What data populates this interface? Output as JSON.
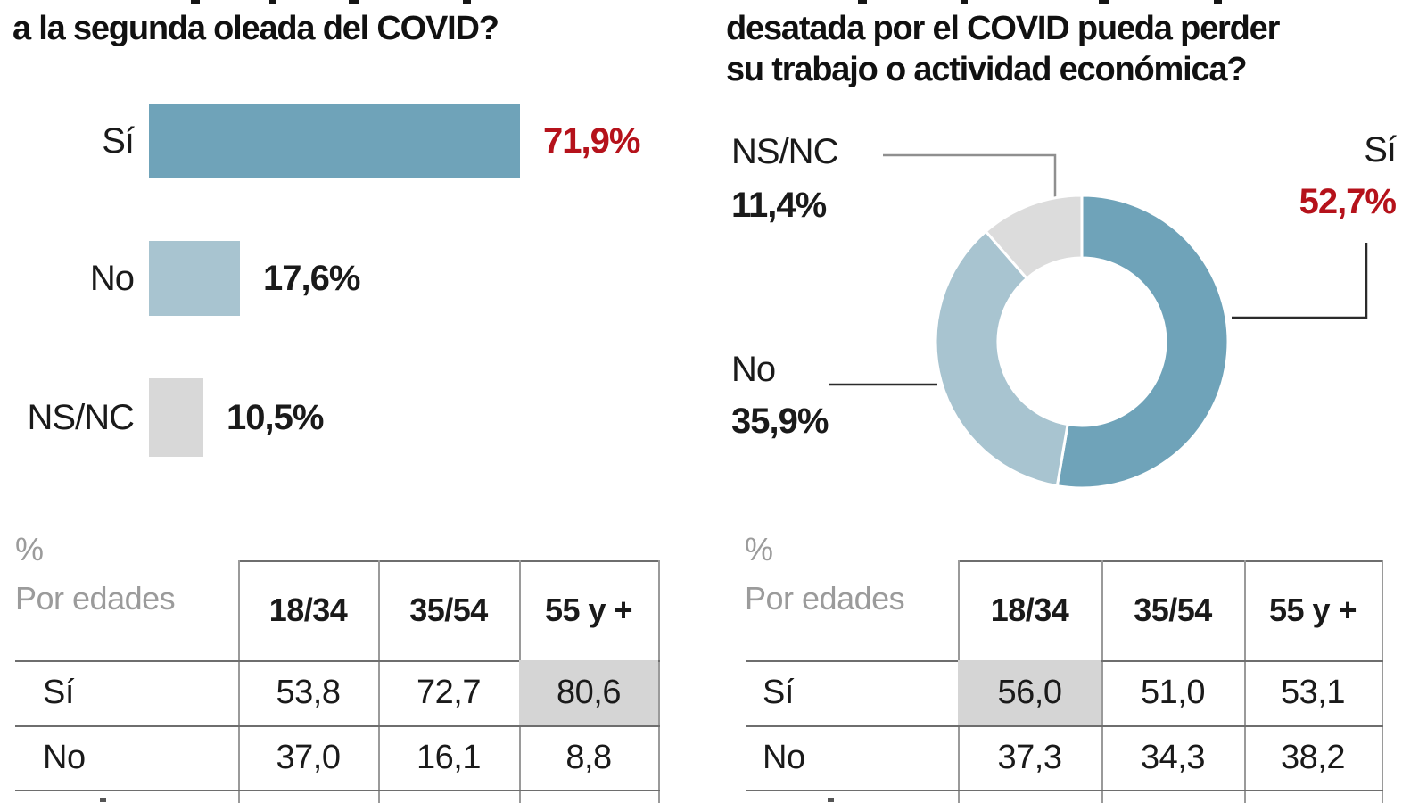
{
  "colors": {
    "accent_red": "#b5121b",
    "dark_blue": "#6fa3b9",
    "light_blue": "#a8c4d0",
    "gray_slice": "#d8d8d8",
    "table_highlight": "#d5d5d5",
    "muted_text": "#9b9b9b"
  },
  "chart_data": [
    {
      "type": "bar",
      "orientation": "horizontal",
      "title_lines": [
        "a la segunda oleada del COVID?"
      ],
      "categories": [
        "Sí",
        "No",
        "NS/NC"
      ],
      "values": [
        71.9,
        17.6,
        10.5
      ],
      "value_labels": [
        "71,9%",
        "17,6%",
        "10,5%"
      ],
      "xlim": [
        0,
        100
      ],
      "grid": false,
      "bar_colors": [
        "#6fa3b9",
        "#a8c4d0",
        "#d8d8d8"
      ],
      "value_label_colors": [
        "#b5121b",
        "#1a1a1a",
        "#1a1a1a"
      ]
    },
    {
      "type": "pie",
      "subtype": "donut",
      "title_lines": [
        "desatada por el COVID pueda perder",
        "su trabajo o actividad económica?"
      ],
      "categories": [
        "Sí",
        "No",
        "NS/NC"
      ],
      "values": [
        52.7,
        35.9,
        11.4
      ],
      "value_labels": [
        "52,7%",
        "35,9%",
        "11,4%"
      ],
      "start_angle_deg": 0,
      "direction": "clockwise",
      "slice_colors": [
        "#6fa3b9",
        "#a8c4d0",
        "#dcdcdc"
      ],
      "value_label_colors": [
        "#b5121b",
        "#1a1a1a",
        "#1a1a1a"
      ],
      "legend_position": "callout-labels"
    }
  ],
  "tables": [
    {
      "unit_label": "%",
      "group_label": "Por edades",
      "columns": [
        "18/34",
        "35/54",
        "55 y +"
      ],
      "rows": [
        {
          "label": "Sí",
          "values": [
            "53,8",
            "72,7",
            "80,6"
          ],
          "highlight": 2
        },
        {
          "label": "No",
          "values": [
            "37,0",
            "16,1",
            "8,8"
          ],
          "highlight": null
        }
      ],
      "highlight_color": "#d5d5d5"
    },
    {
      "unit_label": "%",
      "group_label": "Por edades",
      "columns": [
        "18/34",
        "35/54",
        "55 y +"
      ],
      "rows": [
        {
          "label": "Sí",
          "values": [
            "56,0",
            "51,0",
            "53,1"
          ],
          "highlight": 0
        },
        {
          "label": "No",
          "values": [
            "37,3",
            "34,3",
            "38,2"
          ],
          "highlight": null
        }
      ],
      "highlight_color": "#d5d5d5"
    }
  ]
}
